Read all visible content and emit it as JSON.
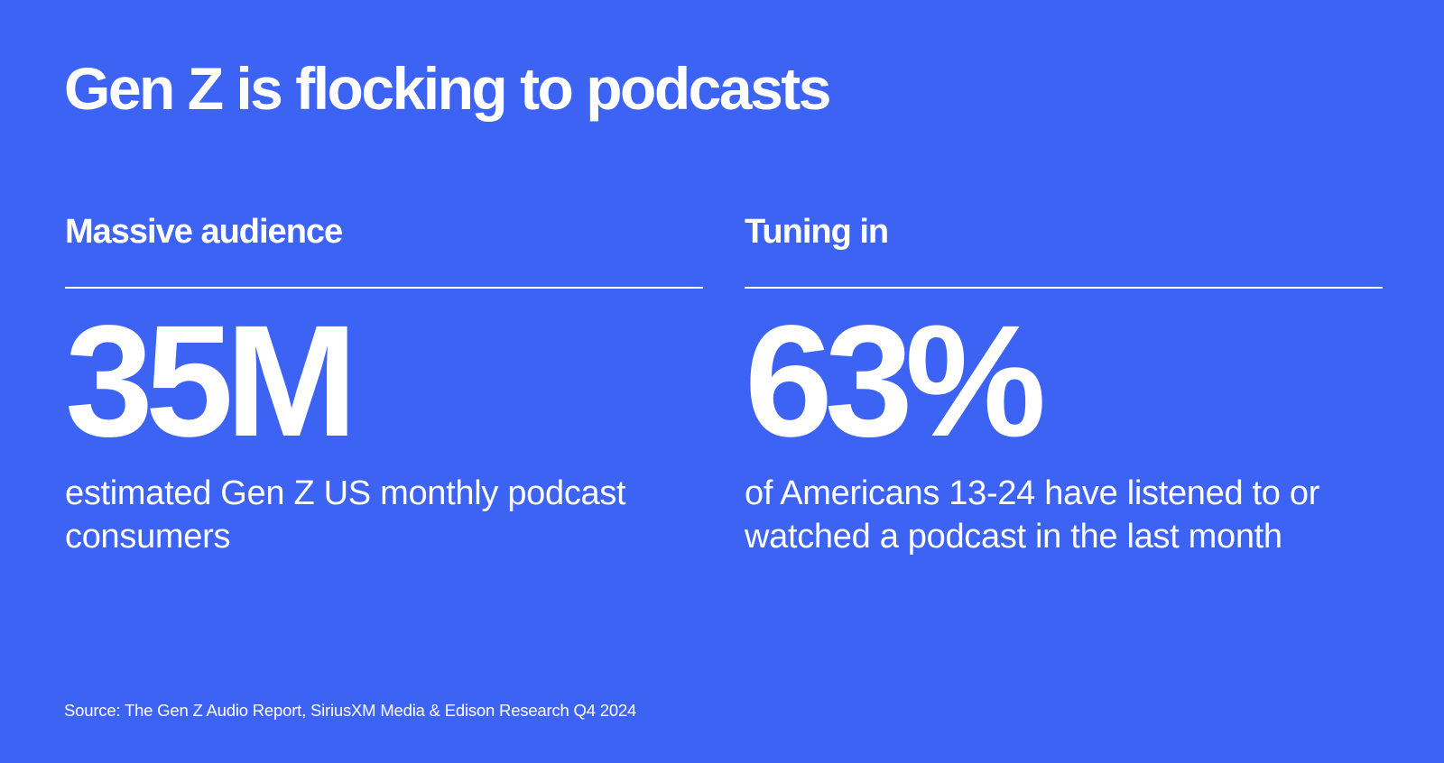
{
  "page": {
    "title": "Gen Z is flocking to podcasts",
    "background_color": "#3d63f5",
    "text_color": "#ffffff"
  },
  "panels": [
    {
      "heading": "Massive audience",
      "stat": "35M",
      "description": "estimated Gen Z US monthly podcast consumers"
    },
    {
      "heading": "Tuning in",
      "stat": "63%",
      "description": "of Americans 13-24 have listened to or watched a podcast in the last month"
    }
  ],
  "footer": {
    "source": "Source: The Gen Z Audio Report, SiriusXM Media & Edison Research Q4 2024"
  }
}
